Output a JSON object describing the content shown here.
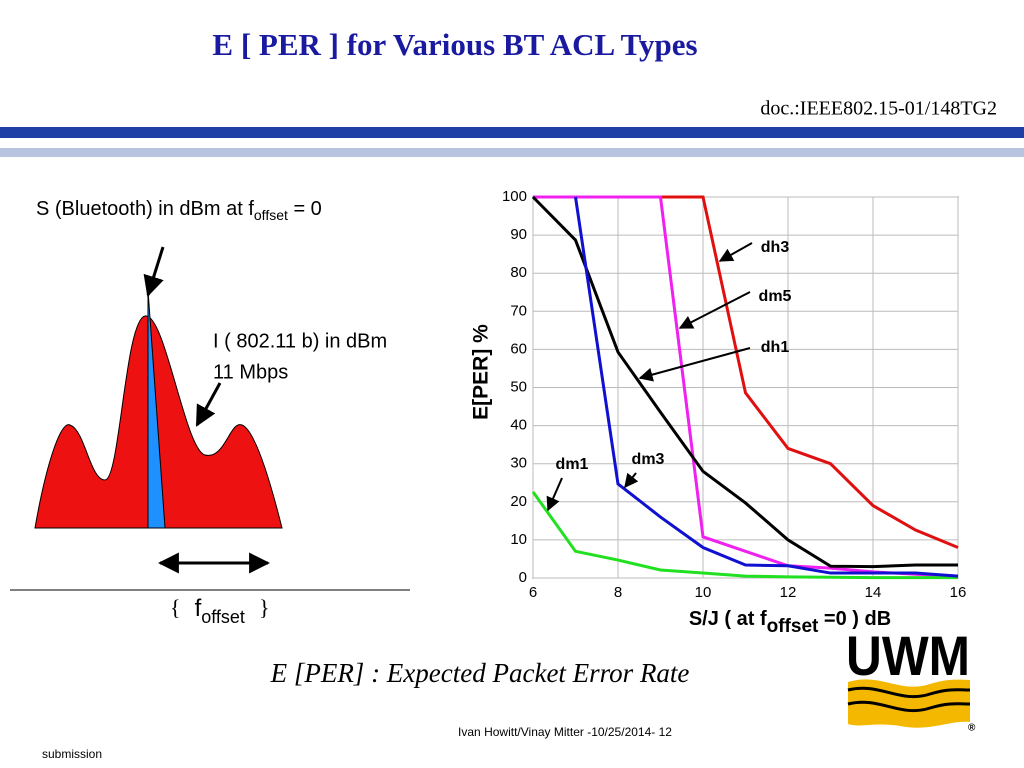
{
  "slide": {
    "title": "E [ PER ] for Various BT ACL  Types",
    "doc": "doc.:IEEE802.15-01/148TG2",
    "signal_label": [
      "S (Bluetooth) in dBm at f",
      "offset",
      " = 0"
    ],
    "interferer_label": [
      "I ( 802.11 b) in dBm",
      "11 Mbps"
    ],
    "offset_label": [
      "{",
      "f",
      "offset",
      "}"
    ],
    "caption": "E [PER] : Expected Packet Error Rate",
    "footer": "Ivan Howitt/Vinay Mitter -10/25/2014- 12",
    "submission": "submission",
    "logo": "UWM",
    "logo_mark": "®"
  },
  "chart_data": {
    "type": "line",
    "ylabel": "E[PER] %",
    "xlabel_parts": [
      "S/J ( at f",
      "offset",
      " =0 ) dB"
    ],
    "x": [
      6,
      7,
      8,
      9,
      10,
      11,
      12,
      13,
      14,
      15,
      16
    ],
    "xlim": [
      6,
      16
    ],
    "xticks": [
      6,
      8,
      10,
      12,
      14,
      16
    ],
    "ylim": [
      0,
      100
    ],
    "yticks": [
      0,
      10,
      20,
      30,
      40,
      50,
      60,
      70,
      80,
      90,
      100
    ],
    "grid": true,
    "series": [
      {
        "name": "dh3",
        "color": "#e01010",
        "values": [
          100,
          100,
          100,
          100,
          100,
          48.6,
          34,
          30,
          19,
          12.6,
          8
        ]
      },
      {
        "name": "dm5",
        "color": "#f020f0",
        "values": [
          100,
          100,
          100,
          100,
          10.8,
          7,
          3.2,
          2.6,
          1.6,
          1,
          0.5
        ]
      },
      {
        "name": "dh1",
        "color": "#000000",
        "values": [
          100,
          88.7,
          59.3,
          43.5,
          28,
          19.7,
          10,
          3.1,
          3,
          3.4,
          3.4
        ]
      },
      {
        "name": "dm1",
        "color": "#20e020",
        "values": [
          22.6,
          7,
          4.7,
          2.1,
          1.3,
          0.5,
          0.3,
          0.2,
          0.1,
          0.1,
          0.1
        ]
      },
      {
        "name": "dm3",
        "color": "#1010d0",
        "values": [
          null,
          100,
          24.7,
          16,
          8,
          3.4,
          3.2,
          1.3,
          1.3,
          1.3,
          0.5
        ]
      }
    ]
  }
}
